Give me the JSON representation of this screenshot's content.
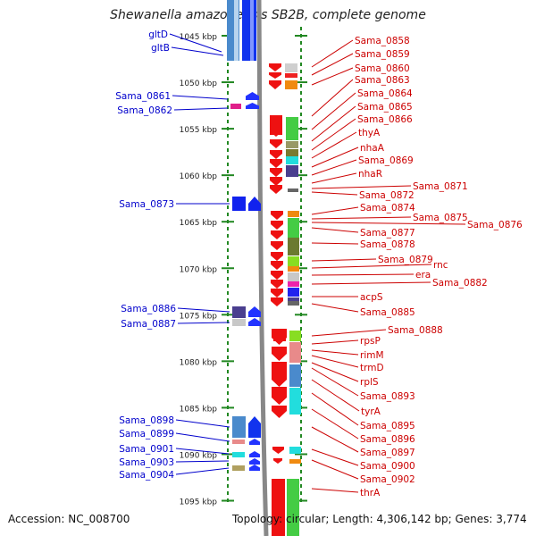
{
  "title": "Shewanella amazonensis SB2B, complete genome",
  "footer": {
    "accession": "Accession: NC_008700",
    "topology": "Topology: circular; Length: 4,306,142 bp; Genes: 3,774"
  },
  "colors": {
    "left_label": "#0000cc",
    "right_label": "#cc0000",
    "ruler_tick": "#228822",
    "backbone": "#888888"
  },
  "ruler": {
    "unit": "kbp",
    "ticks": [
      1045,
      1050,
      1055,
      1060,
      1065,
      1070,
      1075,
      1080,
      1085,
      1090,
      1095
    ]
  },
  "left_genes": [
    {
      "label": "gltD",
      "color": "#4a8acc"
    },
    {
      "label": "gltB",
      "color": "#4a8acc"
    },
    {
      "label": "Sama_0861",
      "color": "#e0208a"
    },
    {
      "label": "Sama_0862",
      "color": "#2233ff"
    },
    {
      "label": "Sama_0873",
      "color": "#1122ee"
    },
    {
      "label": "Sama_0886",
      "color": "#4a3f8f"
    },
    {
      "label": "Sama_0887",
      "color": "#c8c8c8"
    },
    {
      "label": "Sama_0898",
      "color": "#4a8acc"
    },
    {
      "label": "Sama_0899",
      "color": "#e88a8a"
    },
    {
      "label": "Sama_0901",
      "color": "#22dddd"
    },
    {
      "label": "Sama_0903",
      "color": "#1122ee"
    },
    {
      "label": "Sama_0904",
      "color": "#b0a060"
    }
  ],
  "right_genes": [
    {
      "label": "Sama_0858"
    },
    {
      "label": "Sama_0859"
    },
    {
      "label": "Sama_0860"
    },
    {
      "label": "Sama_0863"
    },
    {
      "label": "Sama_0864"
    },
    {
      "label": "Sama_0865"
    },
    {
      "label": "Sama_0866"
    },
    {
      "label": "thyA"
    },
    {
      "label": "nhaA"
    },
    {
      "label": "Sama_0869"
    },
    {
      "label": "nhaR"
    },
    {
      "label": "Sama_0871"
    },
    {
      "label": "Sama_0872"
    },
    {
      "label": "Sama_0874"
    },
    {
      "label": "Sama_0875"
    },
    {
      "label": "Sama_0876"
    },
    {
      "label": "Sama_0877"
    },
    {
      "label": "Sama_0878"
    },
    {
      "label": "Sama_0879"
    },
    {
      "label": "rnc"
    },
    {
      "label": "era"
    },
    {
      "label": "Sama_0882"
    },
    {
      "label": "acpS"
    },
    {
      "label": "Sama_0885"
    },
    {
      "label": "Sama_0888"
    },
    {
      "label": "rpsP"
    },
    {
      "label": "rimM"
    },
    {
      "label": "trmD"
    },
    {
      "label": "rplS"
    },
    {
      "label": "Sama_0893"
    },
    {
      "label": "tyrA"
    },
    {
      "label": "Sama_0895"
    },
    {
      "label": "Sama_0896"
    },
    {
      "label": "Sama_0897"
    },
    {
      "label": "Sama_0900"
    },
    {
      "label": "Sama_0902"
    },
    {
      "label": "thrA"
    }
  ]
}
